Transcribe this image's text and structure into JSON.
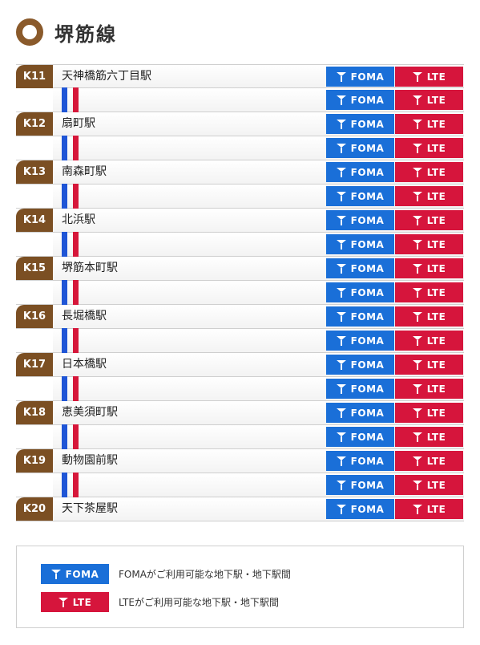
{
  "line": {
    "title": "堺筋線"
  },
  "badges": {
    "foma": "FOMA",
    "lte": "LTE"
  },
  "stations": [
    {
      "code": "K11",
      "name": "天神橋筋六丁目駅"
    },
    {
      "code": "K12",
      "name": "扇町駅"
    },
    {
      "code": "K13",
      "name": "南森町駅"
    },
    {
      "code": "K14",
      "name": "北浜駅"
    },
    {
      "code": "K15",
      "name": "堺筋本町駅"
    },
    {
      "code": "K16",
      "name": "長堀橋駅"
    },
    {
      "code": "K17",
      "name": "日本橋駅"
    },
    {
      "code": "K18",
      "name": "恵美須町駅"
    },
    {
      "code": "K19",
      "name": "動物園前駅"
    },
    {
      "code": "K20",
      "name": "天下茶屋駅"
    }
  ],
  "legend": {
    "foma_text": "FOMAがご利用可能な地下駅・地下駅間",
    "lte_text": "LTEがご利用可能な地下駅・地下駅間"
  },
  "colors": {
    "line_brown": "#7b4f23",
    "foma_blue": "#1a6fd8",
    "lte_red": "#d6153c"
  }
}
